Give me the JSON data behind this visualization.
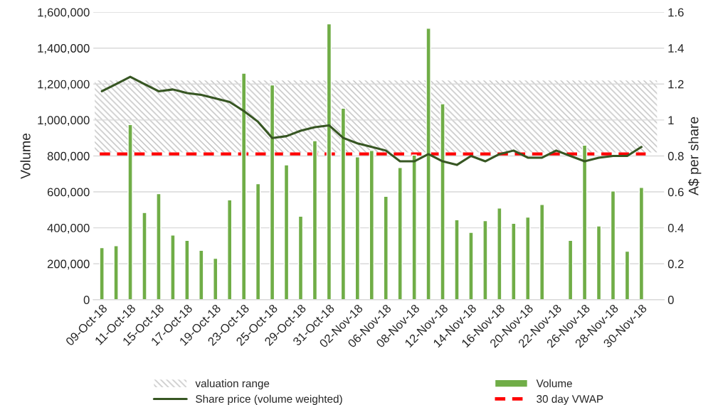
{
  "chart_data": {
    "type": "bar",
    "ylabel": "Volume",
    "y2label": "A$ per share",
    "categories": [
      "09-Oct-18",
      null,
      "11-Oct-18",
      null,
      "15-Oct-18",
      null,
      "17-Oct-18",
      null,
      "19-Oct-18",
      null,
      "23-Oct-18",
      null,
      "25-Oct-18",
      null,
      "29-Oct-18",
      null,
      "31-Oct-18",
      null,
      "02-Nov-18",
      null,
      "06-Nov-18",
      null,
      "08-Nov-18",
      null,
      "12-Nov-18",
      null,
      "14-Nov-18",
      null,
      "16-Nov-18",
      null,
      "20-Nov-18",
      null,
      "22-Nov-18",
      null,
      "26-Nov-18",
      null,
      "28-Nov-18",
      null,
      "30-Nov-18"
    ],
    "series": [
      {
        "name": "Volume",
        "color": "#70ad47",
        "values": [
          290000,
          300000,
          975000,
          485000,
          590000,
          360000,
          330000,
          275000,
          230000,
          555000,
          1260000,
          645000,
          1195000,
          750000,
          465000,
          885000,
          1535000,
          1065000,
          795000,
          830000,
          575000,
          735000,
          805000,
          1510000,
          1090000,
          445000,
          375000,
          440000,
          510000,
          425000,
          460000,
          530000,
          null,
          330000,
          860000,
          410000,
          605000,
          270000,
          625000
        ]
      },
      {
        "name": "Share price (volume weighted)",
        "type": "line",
        "axis": "y2",
        "color": "#375623",
        "values": [
          1.16,
          1.2,
          1.24,
          1.2,
          1.16,
          1.17,
          1.15,
          1.14,
          1.12,
          1.1,
          1.05,
          0.99,
          0.9,
          0.91,
          0.94,
          0.96,
          0.97,
          0.9,
          0.87,
          0.85,
          0.83,
          0.77,
          0.77,
          0.81,
          0.77,
          0.75,
          0.8,
          0.77,
          0.81,
          0.83,
          0.79,
          0.79,
          0.83,
          0.8,
          0.77,
          0.79,
          0.8,
          0.8,
          0.85
        ]
      }
    ],
    "ylim": [
      0,
      1600000
    ],
    "yticks": [
      0,
      {
        "value": 200000,
        "label": "200,000"
      },
      {
        "value": 400000,
        "label": "400,000"
      },
      {
        "value": 600000,
        "label": "600,000"
      },
      {
        "value": 800000,
        "label": "800,000"
      },
      {
        "value": 1000000,
        "label": "1,000,000"
      },
      {
        "value": 1200000,
        "label": "1,200,000"
      },
      {
        "value": 1400000,
        "label": "1,400,000"
      },
      {
        "value": 1600000,
        "label": "1,600,000"
      }
    ],
    "y2lim": [
      0,
      1.6
    ],
    "y2ticks": [
      0,
      0.2,
      0.4,
      0.6,
      0.8,
      1,
      1.2,
      1.4,
      1.6
    ],
    "bands": [
      {
        "axis": "y2",
        "from": 0.82,
        "to": 1.22,
        "label": "valuation range",
        "color": "#bfbfbf"
      }
    ],
    "ref_lines": [
      {
        "axis": "y2",
        "value": 0.81,
        "label": "30 day VWAP",
        "color": "#ff0000",
        "line_style": "dashed"
      }
    ],
    "grid": "y",
    "legend": "bottom"
  }
}
